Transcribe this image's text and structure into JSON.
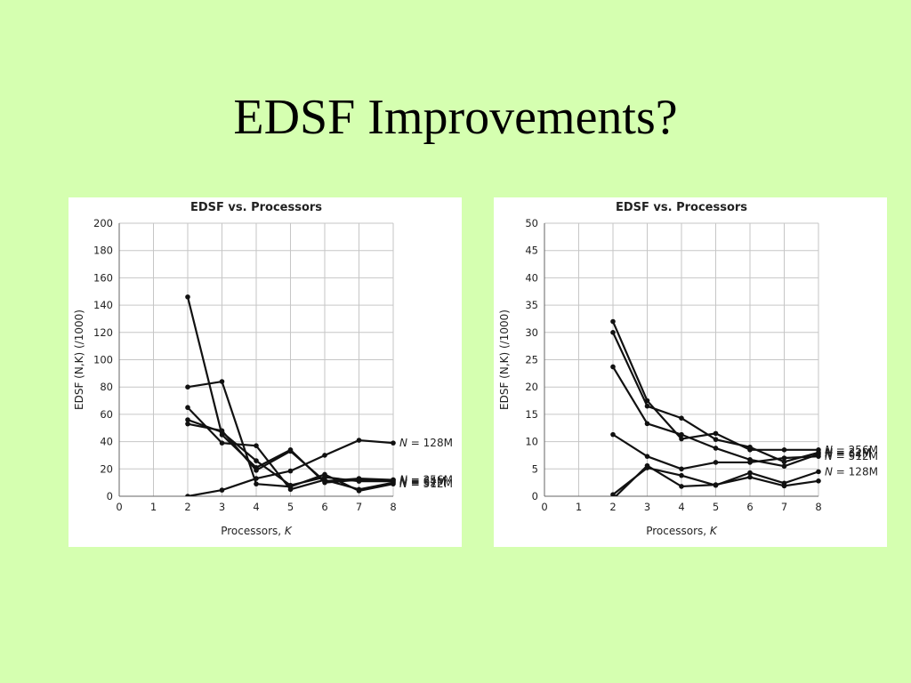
{
  "slide": {
    "title": "EDSF Improvements?"
  },
  "chart_data": [
    {
      "type": "line",
      "title": "EDSF vs. Processors",
      "xlabel": "Processors, K",
      "ylabel": "EDSF (N,K) (/1000)",
      "xlim": [
        0,
        8
      ],
      "ylim": [
        0,
        200
      ],
      "xticks": [
        0,
        1,
        2,
        3,
        4,
        5,
        6,
        7,
        8
      ],
      "yticks": [
        0,
        20,
        40,
        60,
        80,
        100,
        120,
        140,
        160,
        180,
        200
      ],
      "grid": true,
      "legend": "inline-right",
      "series": [
        {
          "name": "N = 128M",
          "x": [
            2,
            3,
            4,
            5,
            6,
            7,
            8
          ],
          "y": [
            0,
            4.5,
            13,
            18.5,
            30,
            41,
            39
          ]
        },
        {
          "name": "N = 256M",
          "x": [
            2,
            3,
            4,
            5,
            6,
            7,
            8
          ],
          "y": [
            146,
            45,
            21,
            34,
            10,
            12,
            12
          ]
        },
        {
          "name": "N = 512M",
          "x": [
            2,
            3,
            4,
            5,
            6,
            7,
            8
          ],
          "y": [
            80,
            84,
            9,
            7,
            16,
            4,
            9
          ]
        },
        {
          "name": "N = 32M",
          "x": [
            2,
            3,
            4,
            5,
            6,
            7,
            8
          ],
          "y": [
            65,
            39,
            37,
            5,
            12,
            5,
            10
          ]
        },
        {
          "name": "N = 64M",
          "x": [
            2,
            3,
            4,
            5,
            6,
            7,
            8
          ],
          "y": [
            56,
            47,
            26,
            8,
            14,
            11,
            11
          ]
        },
        {
          "name": "",
          "x": [
            2,
            3,
            4,
            5,
            6,
            7,
            8
          ],
          "y": [
            53,
            48,
            19,
            33,
            11,
            13,
            12
          ]
        }
      ]
    },
    {
      "type": "line",
      "title": "EDSF vs. Processors",
      "xlabel": "Processors, K",
      "ylabel": "EDSF (N,K) (/1000)",
      "xlim": [
        0,
        8
      ],
      "ylim": [
        0,
        50
      ],
      "xticks": [
        0,
        1,
        2,
        3,
        4,
        5,
        6,
        7,
        8
      ],
      "yticks": [
        0,
        5,
        10,
        15,
        20,
        25,
        30,
        35,
        40,
        45,
        50
      ],
      "grid": true,
      "legend": "inline-right",
      "series": [
        {
          "name": "N = 256M",
          "x": [
            2,
            3,
            4,
            5,
            6,
            7,
            8
          ],
          "y": [
            32,
            17.5,
            10.5,
            11.5,
            8.5,
            8.5,
            8.5
          ]
        },
        {
          "name": "N = 32M",
          "x": [
            2,
            3,
            4,
            5,
            6,
            7,
            8
          ],
          "y": [
            30,
            16.5,
            14.3,
            10.4,
            9,
            6.3,
            8
          ]
        },
        {
          "name": "N = 64M",
          "x": [
            2,
            3,
            4,
            5,
            6,
            7,
            8
          ],
          "y": [
            23.7,
            13.3,
            11.3,
            8.8,
            6.7,
            5.5,
            7.7
          ]
        },
        {
          "name": "N = 512M",
          "x": [
            2,
            3,
            4,
            5,
            6,
            7,
            8
          ],
          "y": [
            11.3,
            7.3,
            5,
            6.2,
            6.2,
            7,
            7.3
          ]
        },
        {
          "name": "N = 128M",
          "x": [
            2,
            3,
            4,
            5,
            6,
            7,
            8
          ],
          "y": [
            0.3,
            5.2,
            3.8,
            2,
            4.3,
            2.4,
            4.5
          ]
        },
        {
          "name": "",
          "x": [
            2,
            3,
            4,
            5,
            6,
            7,
            8
          ],
          "y": [
            -0.5,
            5.6,
            1.8,
            2.1,
            3.5,
            1.9,
            2.8
          ]
        }
      ]
    }
  ]
}
